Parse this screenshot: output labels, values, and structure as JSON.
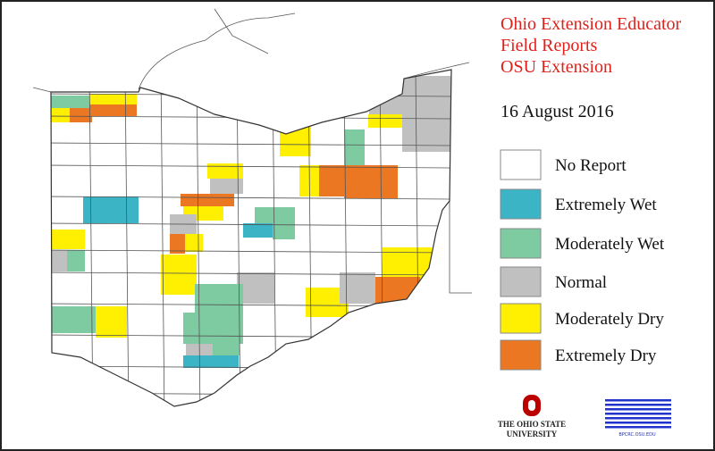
{
  "title_lines": [
    "Ohio Extension Educator",
    "Field Reports",
    "OSU Extension"
  ],
  "date": "16 August 2016",
  "legend": [
    {
      "label": "No Report",
      "color": "#ffffff"
    },
    {
      "label": "Extremely Wet",
      "color": "#3bb5c6"
    },
    {
      "label": "Moderately Wet",
      "color": "#7ecba1"
    },
    {
      "label": "Normal",
      "color": "#c0c0c0"
    },
    {
      "label": "Moderately Dry",
      "color": "#ffef00"
    },
    {
      "label": "Extremely Dry",
      "color": "#ec7722"
    }
  ],
  "logos": {
    "osu": [
      "THE OHIO STATE",
      "UNIVERSITY"
    ],
    "bpcrc": "BPCRC.OSU.EDU"
  }
}
